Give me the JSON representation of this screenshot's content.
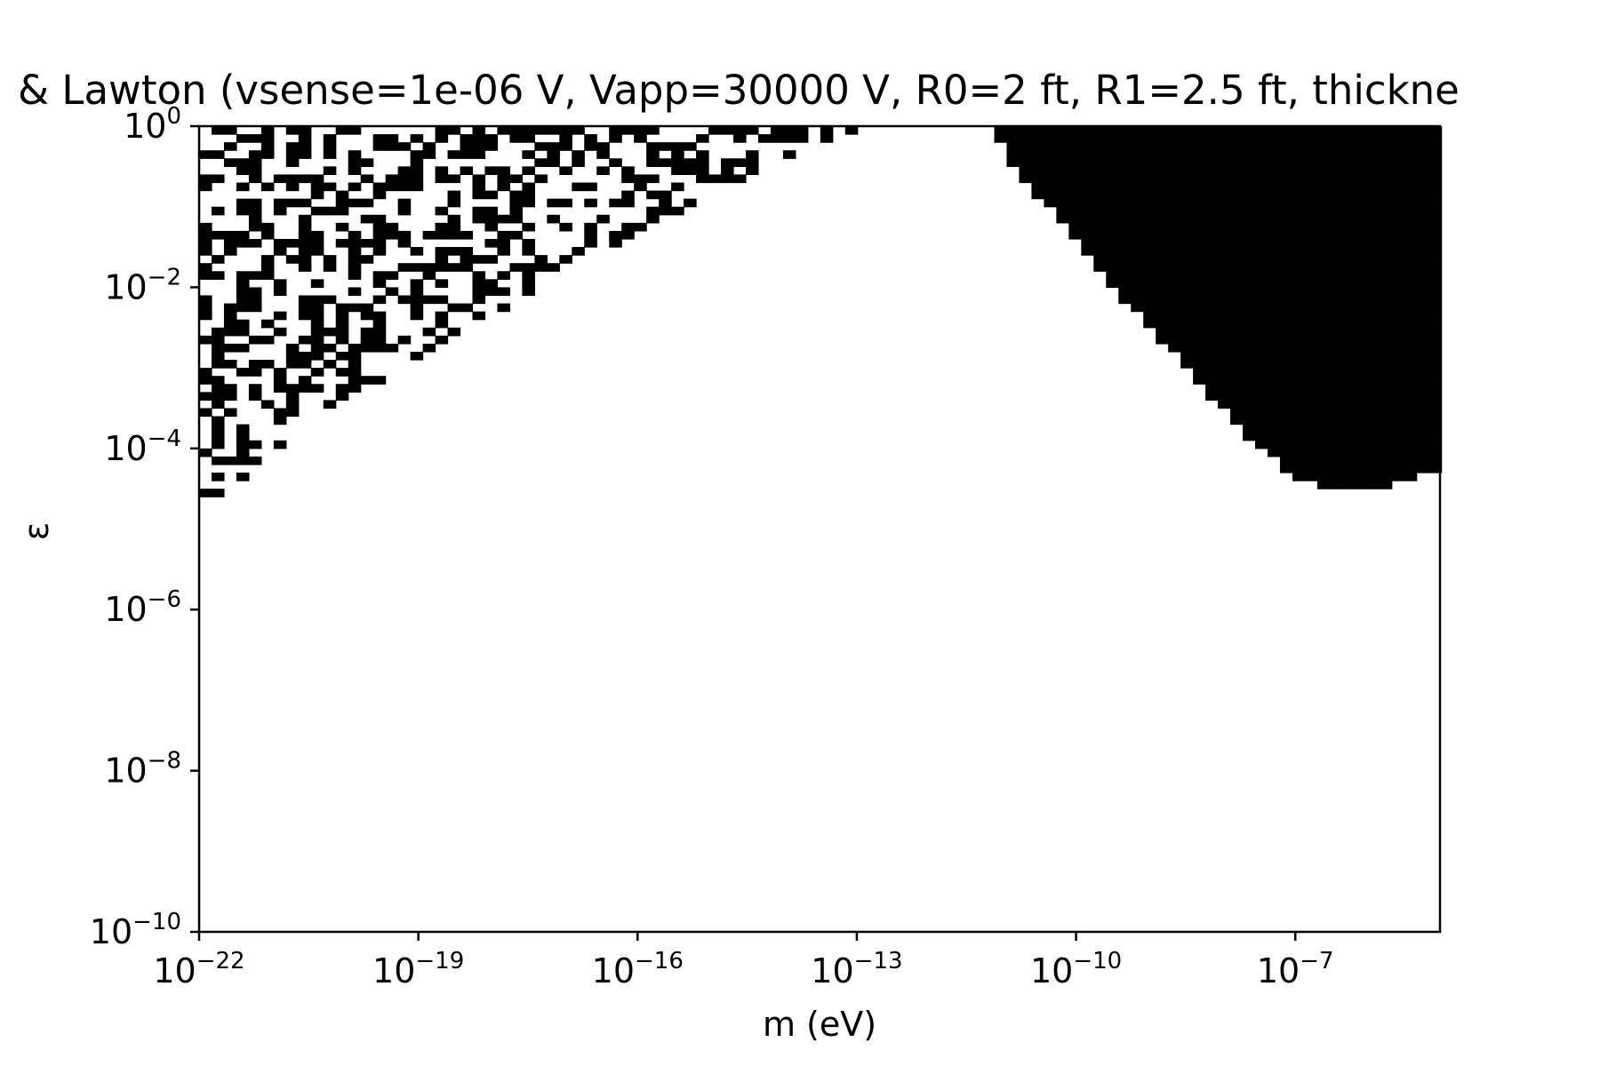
{
  "chart_data": {
    "type": "heatmap",
    "title": "& Lawton (vsense=1e-06 V, Vapp=30000 V, R0=2 ft, R1=2.5 ft, thickne",
    "xlabel": "m (eV)",
    "ylabel": "ε",
    "xscale": "log",
    "yscale": "log",
    "xlim_log10": [
      -22,
      -5.02
    ],
    "ylim_log10": [
      -10,
      0
    ],
    "xticks": [
      {
        "base": "10",
        "exp": "−22",
        "log10": -22
      },
      {
        "base": "10",
        "exp": "−19",
        "log10": -19
      },
      {
        "base": "10",
        "exp": "−16",
        "log10": -16
      },
      {
        "base": "10",
        "exp": "−13",
        "log10": -13
      },
      {
        "base": "10",
        "exp": "−10",
        "log10": -10
      },
      {
        "base": "10",
        "exp": "−7",
        "log10": -7
      }
    ],
    "yticks": [
      {
        "base": "10",
        "exp": "0",
        "log10": 0
      },
      {
        "base": "10",
        "exp": "−2",
        "log10": -2
      },
      {
        "base": "10",
        "exp": "−4",
        "log10": -4
      },
      {
        "base": "10",
        "exp": "−6",
        "log10": -6
      },
      {
        "base": "10",
        "exp": "−8",
        "log10": -8
      },
      {
        "base": "10",
        "exp": "−10",
        "log10": -10
      }
    ],
    "colors": {
      "excluded": "#000000",
      "allowed": "#ffffff"
    },
    "grid": false,
    "legend": "none",
    "regions": [
      {
        "name": "excluded-region-high-mass",
        "description_boundary_log10": [
          [
            -11.15,
            0.0
          ],
          [
            -11.0,
            -0.3
          ],
          [
            -10.5,
            -0.9
          ],
          [
            -10.0,
            -1.4
          ],
          [
            -9.5,
            -2.0
          ],
          [
            -9.0,
            -2.5
          ],
          [
            -8.5,
            -3.0
          ],
          [
            -8.0,
            -3.5
          ],
          [
            -7.5,
            -4.0
          ],
          [
            -7.0,
            -4.35
          ],
          [
            -6.75,
            -4.45
          ],
          [
            -6.5,
            -4.5
          ],
          [
            -6.0,
            -4.53
          ],
          [
            -5.6,
            -4.45
          ],
          [
            -5.3,
            -4.33
          ],
          [
            -5.02,
            -4.3
          ],
          [
            -5.02,
            0.0
          ]
        ]
      },
      {
        "name": "excluded-noisy-low-mass",
        "approx_wedge_log10": {
          "x_min": -22,
          "lower_edge": [
            [
              -22,
              -4.8
            ],
            [
              -20.5,
              -3.7
            ],
            [
              -18.5,
              -2.6
            ],
            [
              -16.0,
              -1.3
            ],
            [
              -14.0,
              -0.4
            ],
            [
              -12.8,
              0.0
            ]
          ]
        },
        "fill_fraction": 0.45
      }
    ]
  }
}
